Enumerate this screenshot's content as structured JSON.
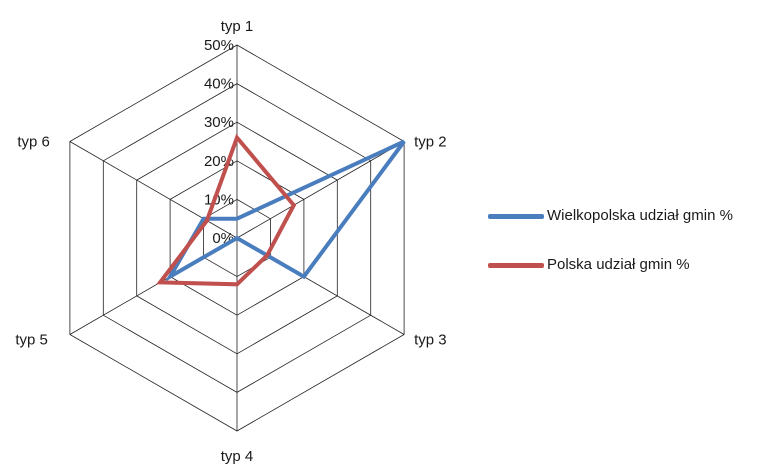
{
  "chart_data": {
    "type": "radar",
    "categories": [
      "typ 1",
      "typ 2",
      "typ 3",
      "typ 4",
      "typ 5",
      "typ 6"
    ],
    "tick_labels": [
      "0%",
      "10%",
      "20%",
      "30%",
      "40%",
      "50%"
    ],
    "rlim": [
      0,
      50
    ],
    "grid": true,
    "legend_position": "right",
    "series": [
      {
        "name": "Wielkopolska udział gmin %",
        "color": "#4a7dbd",
        "values": [
          5,
          50,
          20,
          0,
          20,
          10
        ]
      },
      {
        "name": "Polska udział gmin %",
        "color": "#c0504d",
        "values": [
          26,
          17,
          9,
          12,
          23,
          9
        ]
      }
    ]
  }
}
